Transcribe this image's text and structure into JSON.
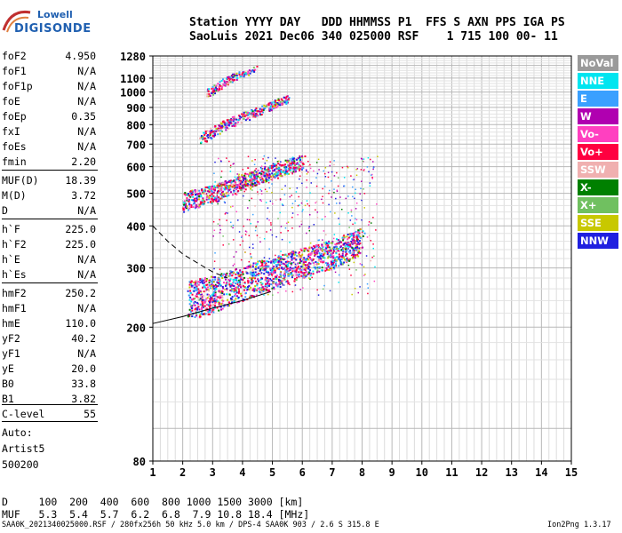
{
  "brand": {
    "line1": "Lowell",
    "line2": "DIGISONDE"
  },
  "header": {
    "line1": "Station YYYY DAY   DDD HHMMSS P1  FFS S AXN PPS IGA PS",
    "line2": "SaoLuis 2021 Dec06 340 025000 RSF    1 715 100 00- 11"
  },
  "params": [
    {
      "k": "foF2",
      "v": "4.950"
    },
    {
      "k": "foF1",
      "v": "N/A"
    },
    {
      "k": "foF1p",
      "v": "N/A"
    },
    {
      "k": "foE",
      "v": "N/A"
    },
    {
      "k": "foEp",
      "v": "0.35"
    },
    {
      "k": "fxI",
      "v": "N/A"
    },
    {
      "k": "foEs",
      "v": "N/A"
    },
    {
      "k": "fmin",
      "v": "2.20"
    },
    {
      "k": "MUF(D)",
      "v": "18.39"
    },
    {
      "k": "M(D)",
      "v": "3.72"
    },
    {
      "k": "D",
      "v": "N/A"
    },
    {
      "k": "h`F",
      "v": "225.0"
    },
    {
      "k": "h`F2",
      "v": "225.0"
    },
    {
      "k": "h`E",
      "v": "N/A"
    },
    {
      "k": "h`Es",
      "v": "N/A"
    },
    {
      "k": "hmF2",
      "v": "250.2"
    },
    {
      "k": "hmF1",
      "v": "N/A"
    },
    {
      "k": "hmE",
      "v": "110.0"
    },
    {
      "k": "yF2",
      "v": "40.2"
    },
    {
      "k": "yF1",
      "v": "N/A"
    },
    {
      "k": "yE",
      "v": "20.0"
    },
    {
      "k": "B0",
      "v": "33.8"
    },
    {
      "k": "B1",
      "v": "3.82"
    },
    {
      "k": "C-level",
      "v": "55"
    }
  ],
  "autotext": {
    "a": "Auto:",
    "b": "Artist5",
    "c": "500200"
  },
  "legend": [
    {
      "label": "NoVal",
      "color": "#9a9a9a"
    },
    {
      "label": "NNE",
      "color": "#00e5f0"
    },
    {
      "label": "E",
      "color": "#3aa0ff"
    },
    {
      "label": "W",
      "color": "#b000b0"
    },
    {
      "label": "Vo-",
      "color": "#ff40c0"
    },
    {
      "label": "Vo+",
      "color": "#ff0040"
    },
    {
      "label": "SSW",
      "color": "#f0b0b0"
    },
    {
      "label": "X-",
      "color": "#008000"
    },
    {
      "label": "X+",
      "color": "#70c060"
    },
    {
      "label": "SSE",
      "color": "#c8c800"
    },
    {
      "label": "NNW",
      "color": "#2020e0"
    }
  ],
  "footer": {
    "d_line": "D     100  200  400  600  800 1000 1500 3000 [km]",
    "muf_line": "MUF   5.3  5.4  5.7  6.2  6.8  7.9 10.8 18.4 [MHz]",
    "file_line": "SAA0K_2021340025000.RSF / 280fx256h 50 kHz 5.0 km / DPS-4 SAA0K 903 / 2.6 S 315.8 E",
    "version": "Ion2Png 1.3.17"
  },
  "chart_data": {
    "type": "scatter",
    "xlim": [
      1,
      15
    ],
    "ylim": [
      80,
      1280
    ],
    "y_scale": "log",
    "grid": true,
    "x_ticks": [
      "1",
      "2",
      "3",
      "4",
      "5",
      "6",
      "7",
      "8",
      "9",
      "10",
      "11",
      "12",
      "13",
      "14",
      "15"
    ],
    "y_ticks": [
      "80",
      "200",
      "300",
      "400",
      "500",
      "600",
      "700",
      "800",
      "900",
      "1000",
      "1100",
      "1280"
    ],
    "y_tick_values": [
      80,
      200,
      300,
      400,
      500,
      600,
      700,
      800,
      900,
      1000,
      1100,
      1280
    ],
    "traces": [
      {
        "name": "F trace",
        "x": [
          2.2,
          3.0,
          4.0,
          5.0,
          6.0,
          7.0,
          8.0
        ],
        "y": [
          230,
          240,
          260,
          280,
          300,
          320,
          350
        ]
      },
      {
        "name": "2F trace",
        "x": [
          2.0,
          3.0,
          4.0,
          5.0,
          6.0
        ],
        "y": [
          460,
          490,
          530,
          570,
          610
        ]
      },
      {
        "name": "3F trace",
        "x": [
          2.6,
          3.5,
          4.5,
          5.5
        ],
        "y": [
          720,
          800,
          870,
          950
        ]
      },
      {
        "name": "4F trace",
        "x": [
          2.8,
          3.5,
          4.5
        ],
        "y": [
          980,
          1080,
          1180
        ]
      }
    ]
  }
}
